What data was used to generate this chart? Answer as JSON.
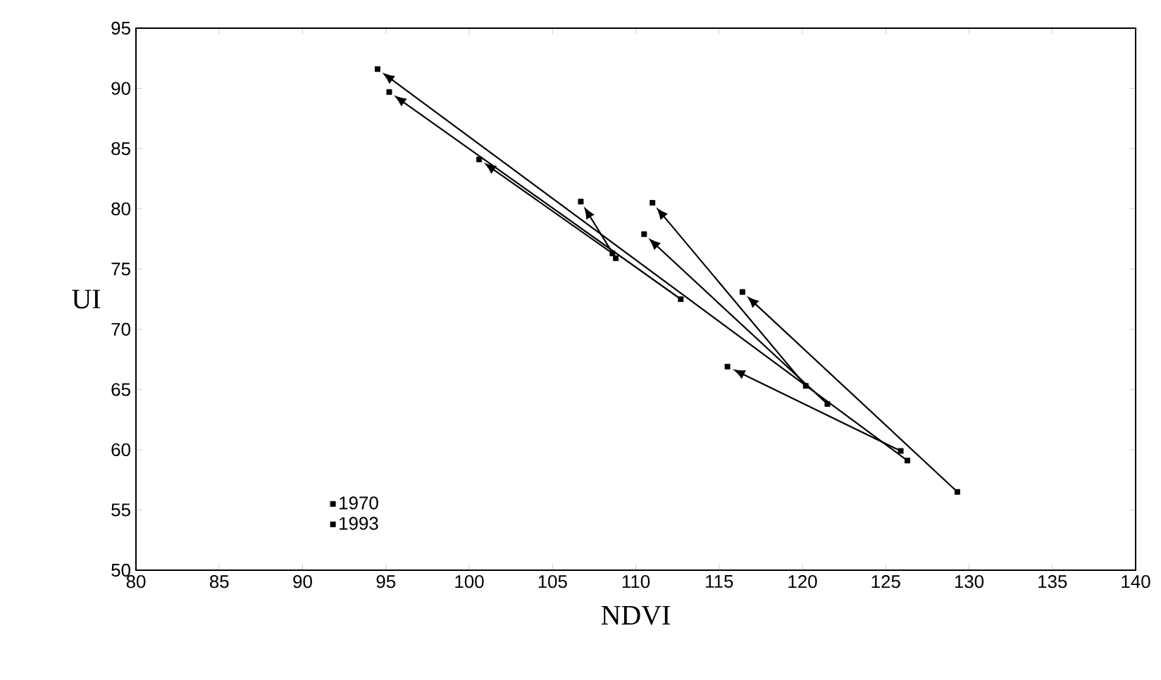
{
  "chart_data": {
    "type": "scatter",
    "xlabel": "NDVI",
    "ylabel": "UI",
    "xlim": [
      80,
      140
    ],
    "ylim": [
      50,
      95
    ],
    "xticks": [
      80,
      85,
      90,
      95,
      100,
      105,
      110,
      115,
      120,
      125,
      130,
      135,
      140
    ],
    "yticks": [
      50,
      55,
      60,
      65,
      70,
      75,
      80,
      85,
      90,
      95
    ],
    "marker": "square",
    "legend": "bottom left",
    "grid": false,
    "series": [
      {
        "name": "1970",
        "color": "#000000",
        "x": [
          129.3,
          121.5,
          120.2,
          125.9,
          108.8,
          108.6,
          112.7,
          126.3
        ],
        "values": [
          56.5,
          63.8,
          65.3,
          59.9,
          75.9,
          76.3,
          72.5,
          59.1
        ]
      },
      {
        "name": "1993",
        "color": "#000000",
        "x": [
          116.4,
          110.5,
          111.0,
          115.5,
          106.7,
          100.6,
          95.2,
          94.5
        ],
        "values": [
          73.1,
          77.9,
          80.5,
          66.9,
          80.6,
          84.1,
          89.7,
          91.6
        ]
      }
    ]
  }
}
